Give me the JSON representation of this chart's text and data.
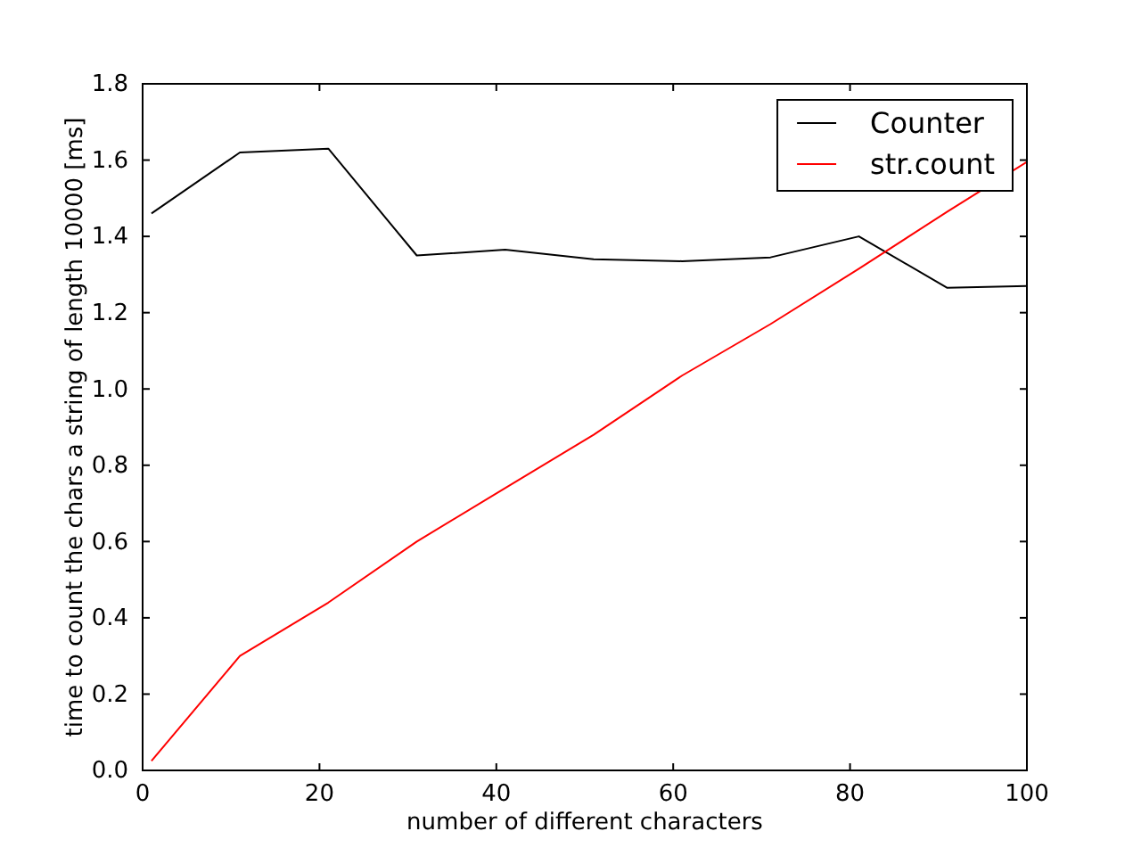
{
  "chart_data": {
    "type": "line",
    "xlabel": "number of different characters",
    "ylabel": "time to count the chars a string of length 10000 [ms]",
    "x": [
      1,
      11,
      21,
      31,
      41,
      51,
      61,
      71,
      81,
      91,
      100
    ],
    "series": [
      {
        "name": "Counter",
        "color": "#000000",
        "values": [
          1.46,
          1.62,
          1.63,
          1.35,
          1.365,
          1.34,
          1.335,
          1.345,
          1.4,
          1.265,
          1.27
        ]
      },
      {
        "name": "str.count",
        "color": "#ff0000",
        "values": [
          0.025,
          0.3,
          0.44,
          0.6,
          0.74,
          0.88,
          1.035,
          1.17,
          1.315,
          1.465,
          1.595
        ]
      }
    ],
    "xlim": [
      0,
      100
    ],
    "xticks": [
      0,
      20,
      40,
      60,
      80,
      100
    ],
    "ylim": [
      0,
      1.8
    ],
    "yticks": [
      {
        "value": 0,
        "label": "0.0"
      },
      0.2,
      0.4,
      0.6,
      0.8,
      {
        "value": 1,
        "label": "1.0"
      },
      1.2,
      1.4,
      1.6,
      1.8
    ],
    "legend": "top right"
  }
}
